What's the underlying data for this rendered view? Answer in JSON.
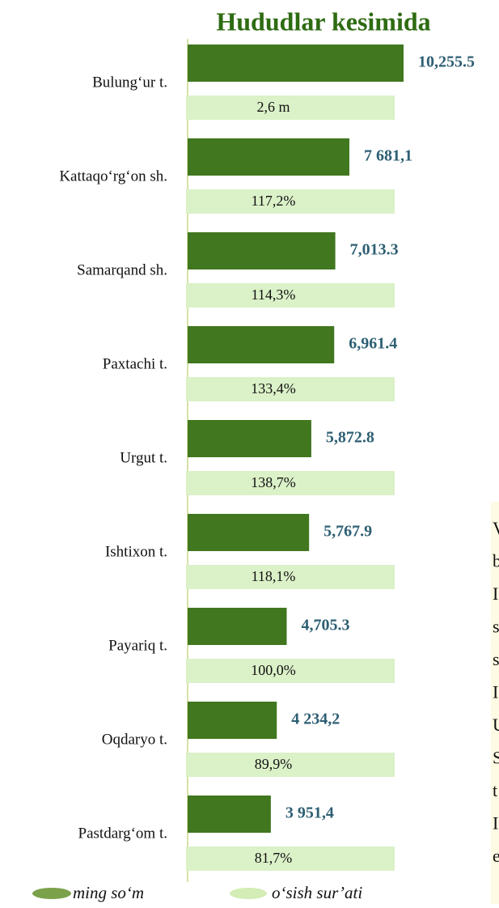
{
  "chart_data": {
    "type": "bar",
    "orientation": "horizontal",
    "title": "Hududlar kesimida",
    "categories": [
      "Bulung‘ur t.",
      "Kattaqo‘rg‘on sh.",
      "Samarqand sh.",
      "Paxtachi t.",
      "Urgut t.",
      "Ishtixon t.",
      "Payariq t.",
      "Oqdaryo t.",
      "Pastdarg‘om t."
    ],
    "series": [
      {
        "name": "ming so‘m",
        "color": "#41771f",
        "values": [
          10255.5,
          7681.1,
          7013.3,
          6961.4,
          5872.8,
          5767.9,
          4705.3,
          4234.2,
          3951.4
        ],
        "value_labels": [
          "10,255.5",
          "7 681,1",
          "7,013.3",
          "6,961.4",
          "5,872.8",
          "5,767.9",
          "4,705.3",
          "4 234,2",
          "3 951,4"
        ]
      },
      {
        "name": "o‘sish sur’ati",
        "color": "#dbf1c8",
        "value_labels": [
          "2,6 m",
          "117,2%",
          "114,3%",
          "133,4%",
          "138,7%",
          "118,1%",
          "100,0%",
          "89,9%",
          "81,7%"
        ]
      }
    ]
  },
  "side_text": [
    "V",
    "b",
    "I",
    "s",
    "s",
    "I",
    "U",
    "S",
    "t",
    "I",
    "e"
  ]
}
